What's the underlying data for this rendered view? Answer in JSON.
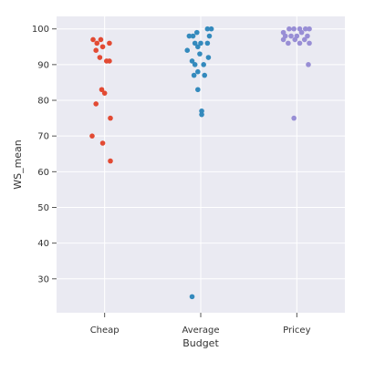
{
  "chart_data": {
    "type": "scatter",
    "style": "strip plot with jitter, grey background, white grid",
    "xlabel": "Budget",
    "ylabel": "WS_mean",
    "categories": [
      "Cheap",
      "Average",
      "Pricey"
    ],
    "ylim": [
      20.5,
      103.5
    ],
    "yticks": [
      30,
      40,
      50,
      60,
      70,
      80,
      90,
      100
    ],
    "ytick_labels": [
      "30",
      "40",
      "50",
      "60",
      "70",
      "80",
      "90",
      "100"
    ],
    "grid": true,
    "colors": {
      "background": "#eaeaf2",
      "grid": "#ffffff",
      "Cheap": "#e24a33",
      "Average": "#348abd",
      "Pricey": "#988ed5"
    },
    "series": [
      {
        "category": "Cheap",
        "points": [
          {
            "jitter": -0.12,
            "y": 97
          },
          {
            "jitter": -0.04,
            "y": 97
          },
          {
            "jitter": -0.08,
            "y": 96
          },
          {
            "jitter": 0.05,
            "y": 96
          },
          {
            "jitter": -0.02,
            "y": 95
          },
          {
            "jitter": -0.09,
            "y": 94
          },
          {
            "jitter": -0.05,
            "y": 92
          },
          {
            "jitter": 0.02,
            "y": 91
          },
          {
            "jitter": 0.05,
            "y": 91
          },
          {
            "jitter": -0.03,
            "y": 83
          },
          {
            "jitter": 0.0,
            "y": 82
          },
          {
            "jitter": -0.09,
            "y": 79
          },
          {
            "jitter": 0.06,
            "y": 75
          },
          {
            "jitter": -0.13,
            "y": 70
          },
          {
            "jitter": -0.02,
            "y": 68
          },
          {
            "jitter": 0.06,
            "y": 63
          }
        ]
      },
      {
        "category": "Average",
        "points": [
          {
            "jitter": 0.11,
            "y": 100
          },
          {
            "jitter": 0.07,
            "y": 100
          },
          {
            "jitter": -0.12,
            "y": 98
          },
          {
            "jitter": -0.08,
            "y": 98
          },
          {
            "jitter": -0.04,
            "y": 99
          },
          {
            "jitter": 0.09,
            "y": 98
          },
          {
            "jitter": -0.06,
            "y": 96
          },
          {
            "jitter": 0.0,
            "y": 96
          },
          {
            "jitter": 0.07,
            "y": 96
          },
          {
            "jitter": -0.14,
            "y": 94
          },
          {
            "jitter": -0.03,
            "y": 95
          },
          {
            "jitter": -0.01,
            "y": 93
          },
          {
            "jitter": 0.08,
            "y": 92
          },
          {
            "jitter": -0.09,
            "y": 91
          },
          {
            "jitter": -0.06,
            "y": 90
          },
          {
            "jitter": 0.03,
            "y": 90
          },
          {
            "jitter": -0.03,
            "y": 88
          },
          {
            "jitter": 0.04,
            "y": 87
          },
          {
            "jitter": -0.07,
            "y": 87
          },
          {
            "jitter": -0.03,
            "y": 83
          },
          {
            "jitter": 0.01,
            "y": 77
          },
          {
            "jitter": 0.01,
            "y": 76
          },
          {
            "jitter": -0.09,
            "y": 25
          }
        ]
      },
      {
        "category": "Pricey",
        "points": [
          {
            "jitter": -0.14,
            "y": 99
          },
          {
            "jitter": -0.08,
            "y": 100
          },
          {
            "jitter": -0.03,
            "y": 100
          },
          {
            "jitter": 0.03,
            "y": 100
          },
          {
            "jitter": 0.09,
            "y": 100
          },
          {
            "jitter": 0.13,
            "y": 100
          },
          {
            "jitter": -0.12,
            "y": 98
          },
          {
            "jitter": -0.06,
            "y": 98
          },
          {
            "jitter": 0.0,
            "y": 98
          },
          {
            "jitter": 0.05,
            "y": 99
          },
          {
            "jitter": 0.11,
            "y": 98
          },
          {
            "jitter": -0.14,
            "y": 97
          },
          {
            "jitter": -0.02,
            "y": 97
          },
          {
            "jitter": 0.08,
            "y": 97
          },
          {
            "jitter": -0.09,
            "y": 96
          },
          {
            "jitter": 0.03,
            "y": 96
          },
          {
            "jitter": 0.13,
            "y": 96
          },
          {
            "jitter": 0.12,
            "y": 90
          },
          {
            "jitter": -0.03,
            "y": 75
          }
        ]
      }
    ]
  }
}
